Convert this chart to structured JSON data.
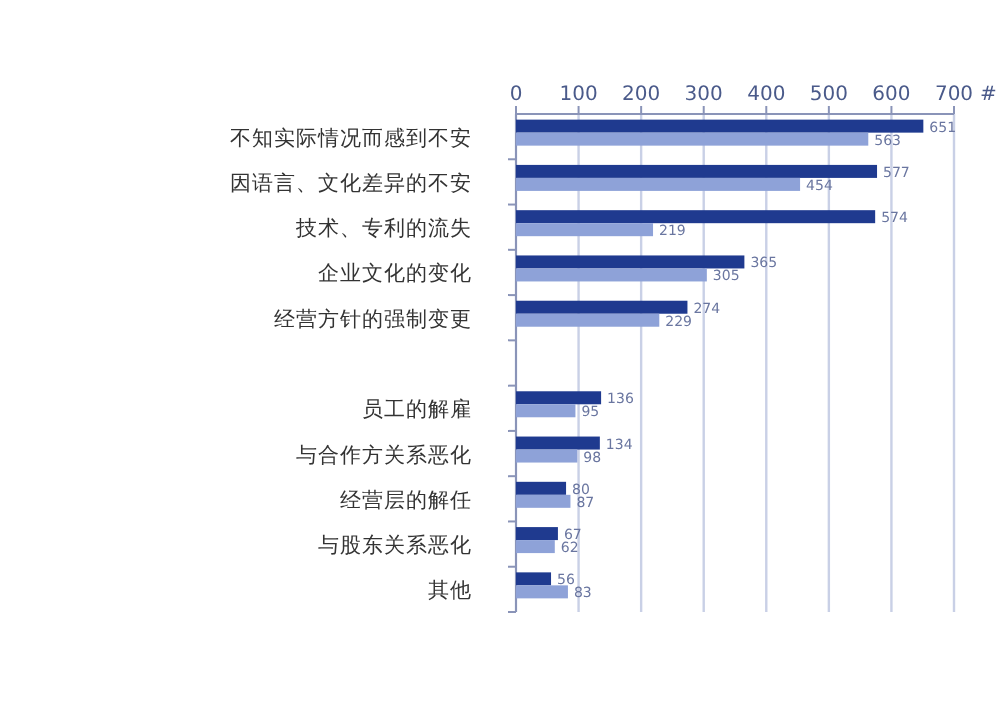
{
  "chart_data": {
    "type": "bar",
    "orientation": "horizontal",
    "xlabel": "#",
    "categories": [
      "不知实际情况而感到不安",
      "因语言、文化差异的不安",
      "技术、专利的流失",
      "企业文化的变化",
      "经营方针的强制变更",
      null,
      "员工的解雇",
      "与合作方关系恶化",
      "经营层的解任",
      "与股东关系恶化",
      "其他"
    ],
    "series": [
      {
        "color": "#1f3a8f",
        "values": [
          651,
          577,
          574,
          365,
          274,
          null,
          136,
          134,
          80,
          67,
          56
        ]
      },
      {
        "color": "#8ea2d8",
        "values": [
          563,
          454,
          219,
          305,
          229,
          null,
          95,
          98,
          87,
          62,
          83
        ]
      }
    ],
    "xlim": [
      0,
      700
    ],
    "xticks": [
      0,
      100,
      200,
      300,
      400,
      500,
      600,
      700
    ],
    "grid": "x",
    "data_labels": true
  }
}
